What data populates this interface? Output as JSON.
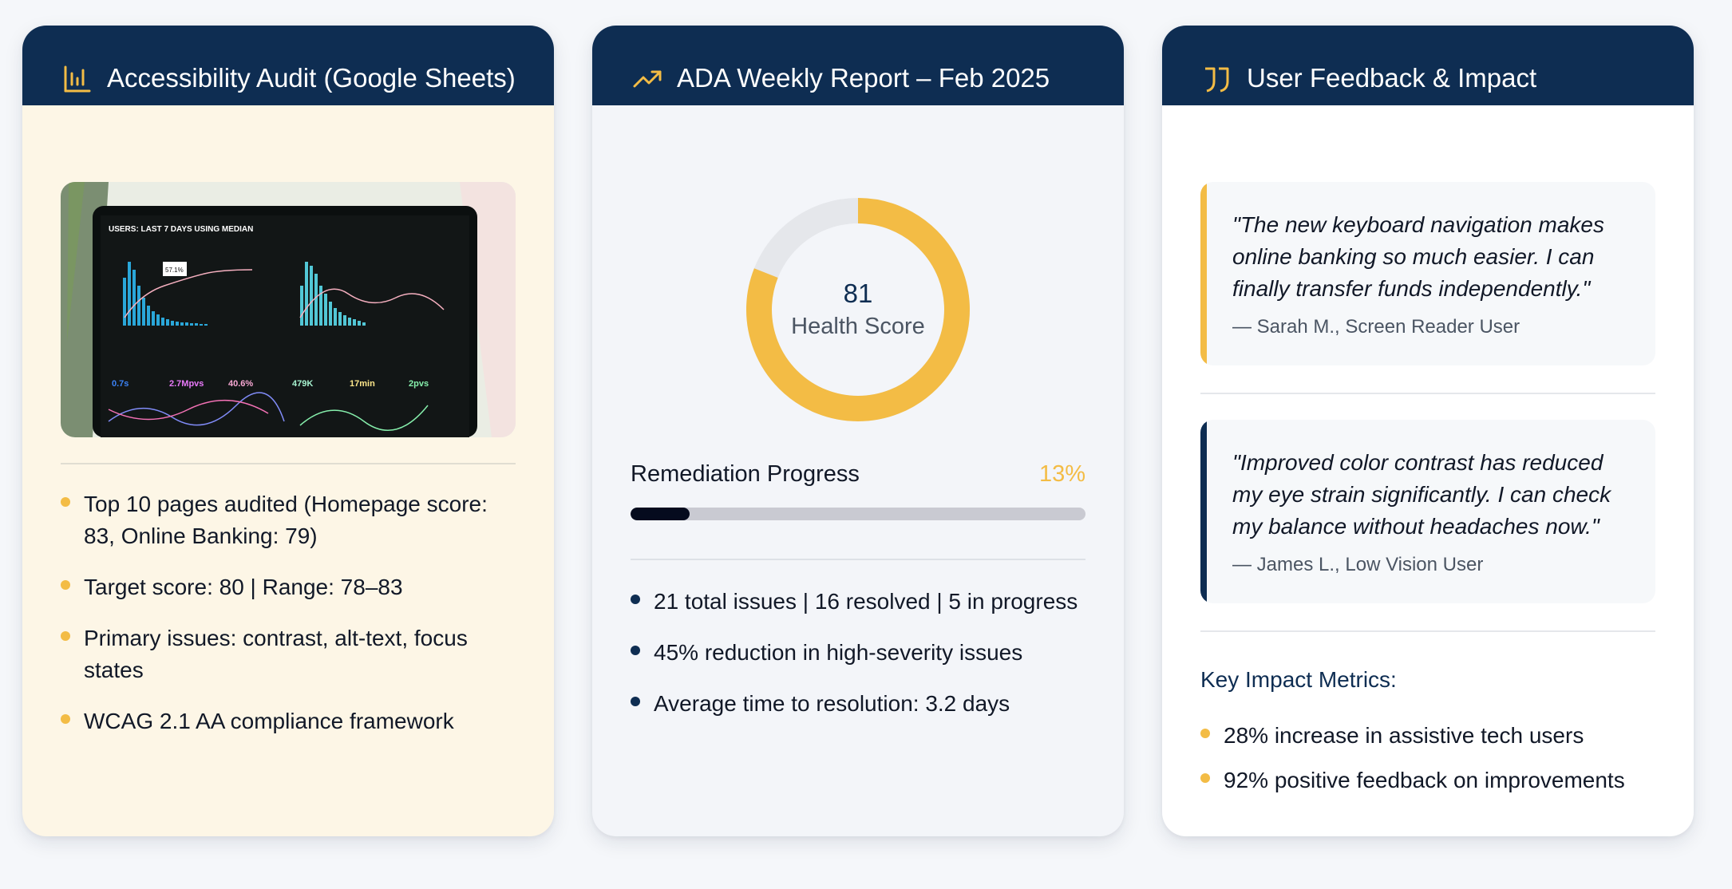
{
  "colors": {
    "navy": "#0e2d52",
    "gold": "#f3bc45",
    "cream": "#fdf6e6"
  },
  "card1": {
    "title": "Accessibility Audit (Google Sheets)",
    "icon": "bar-chart-icon",
    "image": {
      "header": "USERS: LAST 7 DAYS USING MEDIAN",
      "tooltip": "57.1%",
      "stats": [
        "0.7s",
        "2.7Mpvs",
        "40.6%",
        "479K",
        "17min",
        "2pvs"
      ]
    },
    "bullets": [
      "Top 10 pages audited (Homepage score: 83, Online Banking: 79)",
      "Target score: 80 | Range: 78–83",
      "Primary issues: contrast, alt-text, focus states",
      "WCAG 2.1 AA compliance framework"
    ]
  },
  "card2": {
    "title": "ADA Weekly Report – Feb 2025",
    "icon": "trending-up-icon",
    "health_score": "81",
    "health_value": 81,
    "health_label": "Health Score",
    "progress_label": "Remediation Progress",
    "progress_text": "13%",
    "progress_value": 13,
    "bullets": [
      "21 total issues | 16 resolved | 5 in progress",
      "45% reduction in high-severity issues",
      "Average time to resolution: 3.2 days"
    ]
  },
  "card3": {
    "title": "User Feedback & Impact",
    "icon": "quote-icon",
    "quotes": [
      {
        "text": "\"The new keyboard navigation makes online banking so much easier. I can finally transfer funds independently.\"",
        "author": "— Sarah M., Screen Reader User",
        "accent": "#f3bc45"
      },
      {
        "text": "\"Improved color contrast has reduced my eye strain significantly. I can check my balance without headaches now.\"",
        "author": "— James L., Low Vision User",
        "accent": "#0e2d52"
      }
    ],
    "metrics_title": "Key Impact Metrics:",
    "metrics": [
      "28% increase in assistive tech users",
      "92% positive feedback on improvements"
    ]
  }
}
